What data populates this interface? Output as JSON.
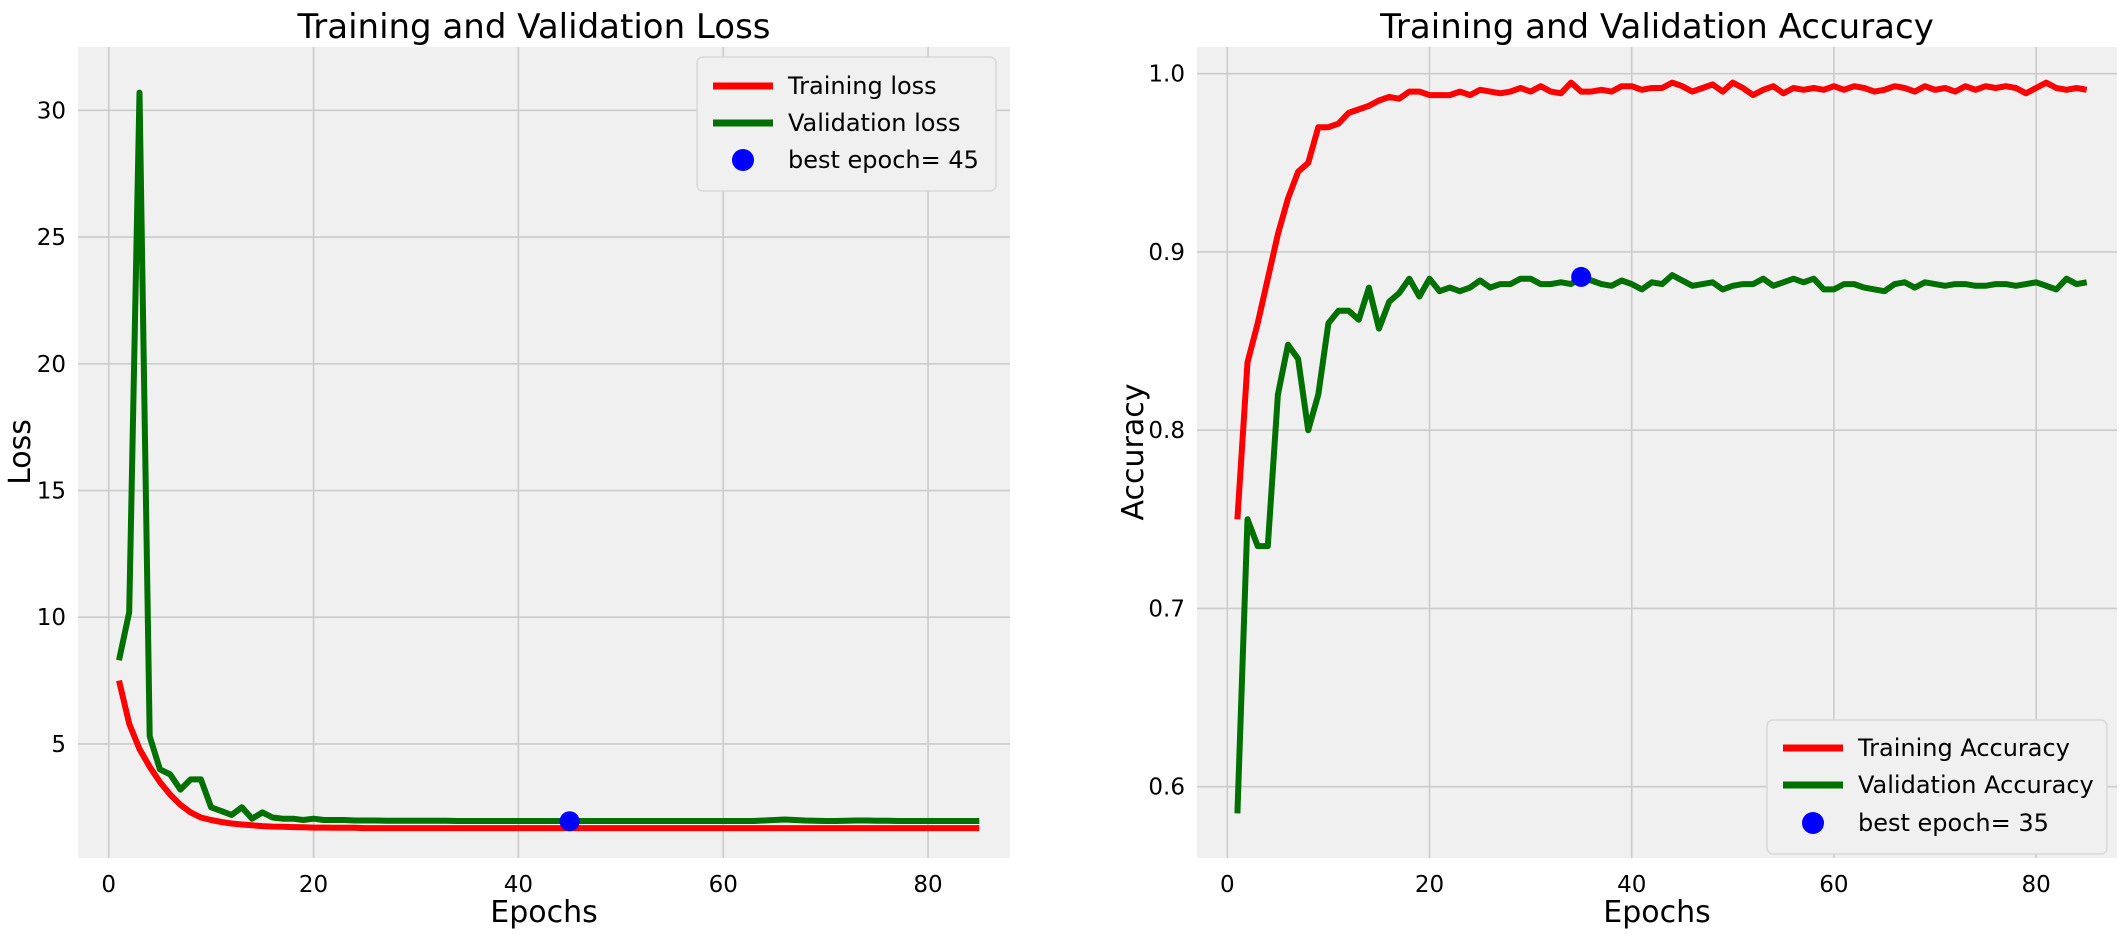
{
  "chart_data": [
    {
      "type": "line",
      "title": "Training and Validation Loss",
      "xlabel": "Epochs",
      "ylabel": "Loss",
      "xlim": [
        -3,
        88
      ],
      "ylim": [
        0.5,
        32.5
      ],
      "xticks": [
        0,
        20,
        40,
        60,
        80
      ],
      "yticks": [
        5,
        10,
        15,
        20,
        25,
        30
      ],
      "grid": true,
      "legend_position": "top-right",
      "x": [
        1,
        2,
        3,
        4,
        5,
        6,
        7,
        8,
        9,
        10,
        11,
        12,
        13,
        14,
        15,
        16,
        17,
        18,
        19,
        20,
        21,
        22,
        23,
        24,
        25,
        26,
        27,
        28,
        29,
        30,
        31,
        32,
        33,
        34,
        35,
        36,
        37,
        38,
        39,
        40,
        41,
        42,
        43,
        44,
        45,
        46,
        47,
        48,
        49,
        50,
        51,
        52,
        53,
        54,
        55,
        56,
        57,
        58,
        59,
        60,
        61,
        62,
        63,
        64,
        65,
        66,
        67,
        68,
        69,
        70,
        71,
        72,
        73,
        74,
        75,
        76,
        77,
        78,
        79,
        80,
        81,
        82,
        83,
        84,
        85
      ],
      "series": [
        {
          "name": "Training loss",
          "color": "#ff0000",
          "values": [
            7.5,
            5.8,
            4.8,
            4.1,
            3.5,
            3.0,
            2.6,
            2.3,
            2.1,
            2.0,
            1.92,
            1.86,
            1.82,
            1.79,
            1.76,
            1.74,
            1.73,
            1.72,
            1.71,
            1.7,
            1.7,
            1.69,
            1.69,
            1.69,
            1.68,
            1.68,
            1.68,
            1.68,
            1.68,
            1.68,
            1.68,
            1.68,
            1.68,
            1.68,
            1.68,
            1.68,
            1.68,
            1.68,
            1.68,
            1.68,
            1.68,
            1.68,
            1.68,
            1.68,
            1.68,
            1.68,
            1.68,
            1.68,
            1.68,
            1.68,
            1.68,
            1.68,
            1.68,
            1.68,
            1.68,
            1.68,
            1.68,
            1.68,
            1.68,
            1.68,
            1.68,
            1.68,
            1.68,
            1.68,
            1.68,
            1.68,
            1.68,
            1.68,
            1.68,
            1.68,
            1.68,
            1.68,
            1.68,
            1.68,
            1.68,
            1.68,
            1.68,
            1.68,
            1.68,
            1.68,
            1.68,
            1.68,
            1.68,
            1.68,
            1.68
          ]
        },
        {
          "name": "Validation loss",
          "color": "#007000",
          "values": [
            8.3,
            10.2,
            30.7,
            5.3,
            4.0,
            3.8,
            3.2,
            3.6,
            3.6,
            2.5,
            2.35,
            2.2,
            2.5,
            2.05,
            2.3,
            2.1,
            2.05,
            2.05,
            2.0,
            2.05,
            2.0,
            2.0,
            2.0,
            1.98,
            1.98,
            1.98,
            1.97,
            1.97,
            1.97,
            1.97,
            1.97,
            1.97,
            1.97,
            1.96,
            1.96,
            1.96,
            1.96,
            1.96,
            1.96,
            1.96,
            1.96,
            1.96,
            1.96,
            1.96,
            1.95,
            1.96,
            1.96,
            1.96,
            1.96,
            1.96,
            1.96,
            1.96,
            1.96,
            1.96,
            1.96,
            1.96,
            1.96,
            1.96,
            1.96,
            1.96,
            1.96,
            1.96,
            1.96,
            1.98,
            2.0,
            2.02,
            2.0,
            1.98,
            1.97,
            1.96,
            1.96,
            1.97,
            1.98,
            1.98,
            1.97,
            1.97,
            1.96,
            1.96,
            1.96,
            1.96,
            1.96,
            1.96,
            1.96,
            1.96,
            1.96
          ]
        }
      ],
      "best_point": {
        "label": "best epoch= 45",
        "x": 45,
        "y": 1.95,
        "color": "#0000ff"
      }
    },
    {
      "type": "line",
      "title": "Training and Validation Accuracy",
      "xlabel": "Epochs",
      "ylabel": "Accuracy",
      "xlim": [
        -3,
        88
      ],
      "ylim": [
        0.56,
        1.015
      ],
      "xticks": [
        0,
        20,
        40,
        60,
        80
      ],
      "yticks": [
        0.6,
        0.7,
        0.8,
        0.9,
        1.0
      ],
      "ytick_labels": [
        "0.6",
        "0.7",
        "0.8",
        "0.9",
        "1.0"
      ],
      "grid": true,
      "legend_position": "bottom-right",
      "x": [
        1,
        2,
        3,
        4,
        5,
        6,
        7,
        8,
        9,
        10,
        11,
        12,
        13,
        14,
        15,
        16,
        17,
        18,
        19,
        20,
        21,
        22,
        23,
        24,
        25,
        26,
        27,
        28,
        29,
        30,
        31,
        32,
        33,
        34,
        35,
        36,
        37,
        38,
        39,
        40,
        41,
        42,
        43,
        44,
        45,
        46,
        47,
        48,
        49,
        50,
        51,
        52,
        53,
        54,
        55,
        56,
        57,
        58,
        59,
        60,
        61,
        62,
        63,
        64,
        65,
        66,
        67,
        68,
        69,
        70,
        71,
        72,
        73,
        74,
        75,
        76,
        77,
        78,
        79,
        80,
        81,
        82,
        83,
        84,
        85
      ],
      "series": [
        {
          "name": "Training Accuracy",
          "color": "#ff0000",
          "values": [
            0.75,
            0.838,
            0.86,
            0.885,
            0.91,
            0.93,
            0.945,
            0.95,
            0.97,
            0.97,
            0.972,
            0.978,
            0.98,
            0.982,
            0.985,
            0.987,
            0.986,
            0.99,
            0.99,
            0.988,
            0.988,
            0.988,
            0.99,
            0.988,
            0.991,
            0.99,
            0.989,
            0.99,
            0.992,
            0.99,
            0.993,
            0.99,
            0.989,
            0.995,
            0.99,
            0.99,
            0.991,
            0.99,
            0.993,
            0.993,
            0.991,
            0.992,
            0.992,
            0.995,
            0.993,
            0.99,
            0.992,
            0.994,
            0.99,
            0.995,
            0.992,
            0.988,
            0.991,
            0.993,
            0.989,
            0.992,
            0.991,
            0.992,
            0.991,
            0.993,
            0.991,
            0.993,
            0.992,
            0.99,
            0.991,
            0.993,
            0.992,
            0.99,
            0.993,
            0.991,
            0.992,
            0.99,
            0.993,
            0.991,
            0.993,
            0.992,
            0.993,
            0.992,
            0.989,
            0.992,
            0.995,
            0.992,
            0.991,
            0.992,
            0.991
          ]
        },
        {
          "name": "Validation Accuracy",
          "color": "#007000",
          "values": [
            0.585,
            0.75,
            0.735,
            0.735,
            0.82,
            0.848,
            0.84,
            0.8,
            0.82,
            0.86,
            0.867,
            0.867,
            0.862,
            0.88,
            0.857,
            0.872,
            0.877,
            0.885,
            0.875,
            0.885,
            0.878,
            0.88,
            0.878,
            0.88,
            0.884,
            0.88,
            0.882,
            0.882,
            0.885,
            0.885,
            0.882,
            0.882,
            0.883,
            0.882,
            0.886,
            0.884,
            0.882,
            0.881,
            0.884,
            0.882,
            0.879,
            0.883,
            0.882,
            0.887,
            0.884,
            0.881,
            0.882,
            0.883,
            0.879,
            0.881,
            0.882,
            0.882,
            0.885,
            0.881,
            0.883,
            0.885,
            0.883,
            0.885,
            0.879,
            0.879,
            0.882,
            0.882,
            0.88,
            0.879,
            0.878,
            0.882,
            0.883,
            0.88,
            0.883,
            0.882,
            0.881,
            0.882,
            0.882,
            0.881,
            0.881,
            0.882,
            0.882,
            0.881,
            0.882,
            0.883,
            0.881,
            0.879,
            0.885,
            0.882,
            0.883
          ]
        }
      ],
      "best_point": {
        "label": "best epoch= 35",
        "x": 35,
        "y": 0.886,
        "color": "#0000ff"
      }
    }
  ]
}
